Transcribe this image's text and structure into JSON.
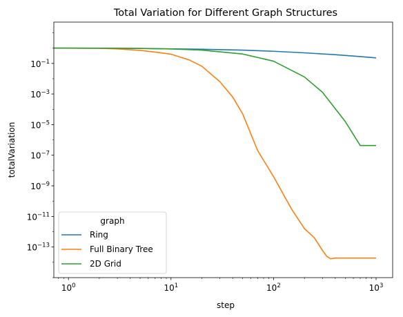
{
  "chart_data": {
    "type": "line",
    "title": "Total Variation for Different Graph Structures",
    "xlabel": "step",
    "ylabel": "totalVariation",
    "xscale": "log",
    "yscale": "log",
    "xlim": [
      0.72,
      1450
    ],
    "ylim": [
      1e-15,
      50
    ],
    "grid": false,
    "x_ticks": [
      {
        "value": 1,
        "base": "10",
        "exp": "0"
      },
      {
        "value": 10,
        "base": "10",
        "exp": "1"
      },
      {
        "value": 100,
        "base": "10",
        "exp": "2"
      },
      {
        "value": 1000,
        "base": "10",
        "exp": "3"
      }
    ],
    "y_ticks": [
      {
        "value": 0.1,
        "base": "10",
        "exp": "−1"
      },
      {
        "value": 0.001,
        "base": "10",
        "exp": "−3"
      },
      {
        "value": 1e-05,
        "base": "10",
        "exp": "−5"
      },
      {
        "value": 1e-07,
        "base": "10",
        "exp": "−7"
      },
      {
        "value": 1e-09,
        "base": "10",
        "exp": "−9"
      },
      {
        "value": 1e-11,
        "base": "10",
        "exp": "−11"
      },
      {
        "value": 1e-13,
        "base": "10",
        "exp": "−13"
      }
    ],
    "legend": {
      "title": "graph",
      "position": "lower-left"
    },
    "series": [
      {
        "name": "Ring",
        "color": "#1f77b4",
        "points": [
          [
            0.72,
            1.0
          ],
          [
            1,
            1.0
          ],
          [
            2,
            0.98
          ],
          [
            5,
            0.94
          ],
          [
            10,
            0.89
          ],
          [
            20,
            0.84
          ],
          [
            50,
            0.74
          ],
          [
            100,
            0.62
          ],
          [
            200,
            0.49
          ],
          [
            400,
            0.37
          ],
          [
            700,
            0.28
          ],
          [
            1000,
            0.23
          ]
        ]
      },
      {
        "name": "Full Binary Tree",
        "color": "#ff7f0e",
        "points": [
          [
            0.72,
            1.0
          ],
          [
            1,
            1.0
          ],
          [
            2,
            0.97
          ],
          [
            3,
            0.88
          ],
          [
            5,
            0.71
          ],
          [
            7,
            0.55
          ],
          [
            10,
            0.4
          ],
          [
            15,
            0.17
          ],
          [
            20,
            0.065
          ],
          [
            30,
            0.0063
          ],
          [
            40,
            0.00063
          ],
          [
            50,
            5e-05
          ],
          [
            70,
            2e-07
          ],
          [
            100,
            4e-09
          ],
          [
            150,
            3e-11
          ],
          [
            200,
            1.6e-12
          ],
          [
            250,
            4e-13
          ],
          [
            300,
            6e-14
          ],
          [
            330,
            2.5e-14
          ],
          [
            360,
            1.7e-14
          ],
          [
            400,
            1.9e-14
          ],
          [
            700,
            1.9e-14
          ],
          [
            1000,
            1.9e-14
          ]
        ]
      },
      {
        "name": "2D Grid",
        "color": "#2ca02c",
        "points": [
          [
            0.72,
            1.0
          ],
          [
            1,
            1.0
          ],
          [
            2,
            0.99
          ],
          [
            5,
            0.96
          ],
          [
            10,
            0.89
          ],
          [
            20,
            0.74
          ],
          [
            50,
            0.41
          ],
          [
            100,
            0.14
          ],
          [
            200,
            0.013
          ],
          [
            300,
            0.0013
          ],
          [
            500,
            1.6e-05
          ],
          [
            700,
            4.3e-07
          ],
          [
            1000,
            4.3e-07
          ]
        ]
      }
    ]
  }
}
